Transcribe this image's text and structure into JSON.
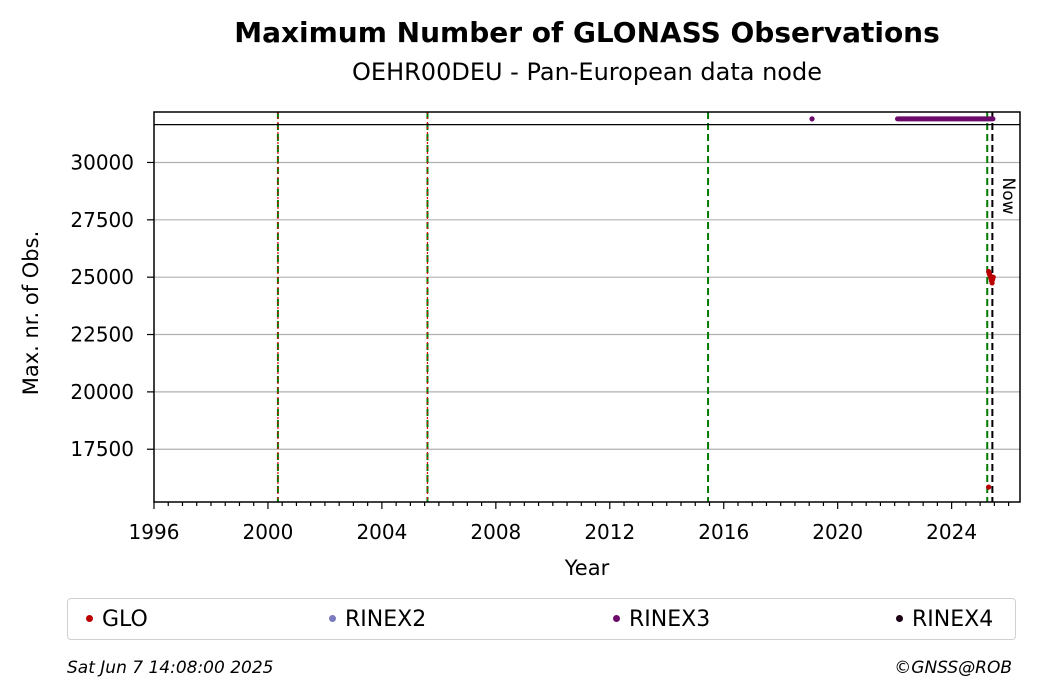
{
  "chart_data": {
    "type": "scatter",
    "title": "Maximum Number of GLONASS Observations",
    "subtitle": "OEHR00DEU - Pan-European data node",
    "xlabel": "Year",
    "ylabel": "Max. nr. of Obs.",
    "xlim": [
      1996,
      2026.4
    ],
    "ylim": [
      15200,
      32200
    ],
    "xticks": [
      1996,
      2000,
      2004,
      2008,
      2012,
      2016,
      2020,
      2024
    ],
    "yticks": [
      17500,
      20000,
      22500,
      25000,
      27500,
      30000
    ],
    "grid": "y",
    "hline": 31650,
    "vlines_green": [
      2000.35,
      2005.6,
      2015.45,
      2025.25
    ],
    "vlines_red": [
      2000.35,
      2005.6
    ],
    "now": {
      "x": 2025.43,
      "label": "Now"
    },
    "series": [
      {
        "name": "GLO",
        "color": "#bb0000",
        "points": [
          [
            2025.3,
            15850
          ],
          [
            2025.3,
            25250
          ],
          [
            2025.32,
            25150
          ],
          [
            2025.34,
            25100
          ],
          [
            2025.36,
            25050
          ],
          [
            2025.38,
            24950
          ],
          [
            2025.4,
            24850
          ],
          [
            2025.42,
            24750
          ],
          [
            2025.44,
            24900
          ],
          [
            2025.46,
            25000
          ]
        ]
      },
      {
        "name": "RINEX2",
        "color": "#7b7bbd",
        "points": []
      },
      {
        "name": "RINEX3",
        "color": "#6b0a6b",
        "points": [
          [
            2019.1,
            31900
          ]
        ],
        "segment": {
          "x0": 2022.1,
          "x1": 2025.45,
          "y": 31900
        }
      },
      {
        "name": "RINEX4",
        "color": "#1a0012",
        "points": []
      }
    ]
  },
  "footer": {
    "date": "Sat Jun  7 14:08:00 2025",
    "copyright": "©GNSS@ROB"
  }
}
